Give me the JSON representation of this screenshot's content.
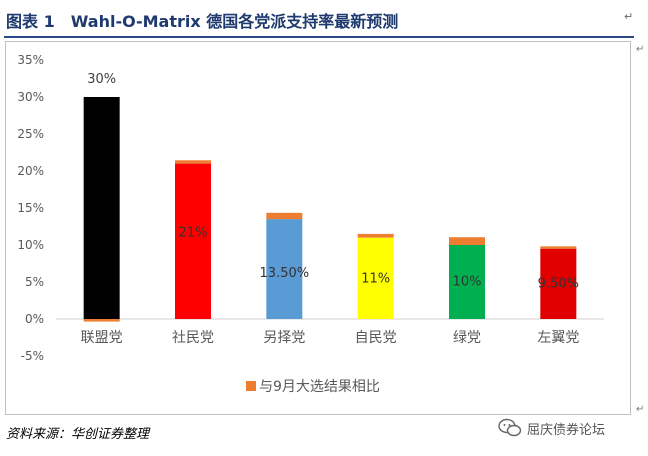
{
  "header": {
    "title": "图表 1　Wahl-O-Matrix 德国各党派支持率最新预测"
  },
  "footer": {
    "source": "资料来源：华创证券整理"
  },
  "watermark": {
    "text": "屈庆债券论坛"
  },
  "chart_data": {
    "type": "bar",
    "title": "",
    "xlabel": "",
    "ylabel": "",
    "ylim": [
      -0.05,
      0.35
    ],
    "y_ticks": [
      "35%",
      "30%",
      "25%",
      "20%",
      "15%",
      "10%",
      "5%",
      "0%",
      "-5%"
    ],
    "categories": [
      "联盟党",
      "社民党",
      "另择党",
      "自民党",
      "绿党",
      "左翼党"
    ],
    "series": [
      {
        "values": [
          0.3,
          0.21,
          0.135,
          0.11,
          0.1,
          0.095
        ],
        "data_labels": [
          "30%",
          "21%",
          "13.50%",
          "11%",
          "10%",
          "9.50%"
        ],
        "colors": [
          "#000000",
          "#ff0000",
          "#5b9bd5",
          "#ffff00",
          "#00b050",
          "#e00000"
        ]
      },
      {
        "name": "与9月大选结果相比",
        "values": [
          -0.0035,
          0.0045,
          0.0085,
          0.005,
          0.0105,
          0.0032
        ],
        "color": "#ed7d31"
      }
    ],
    "grid": false,
    "legend_position": "bottom"
  }
}
